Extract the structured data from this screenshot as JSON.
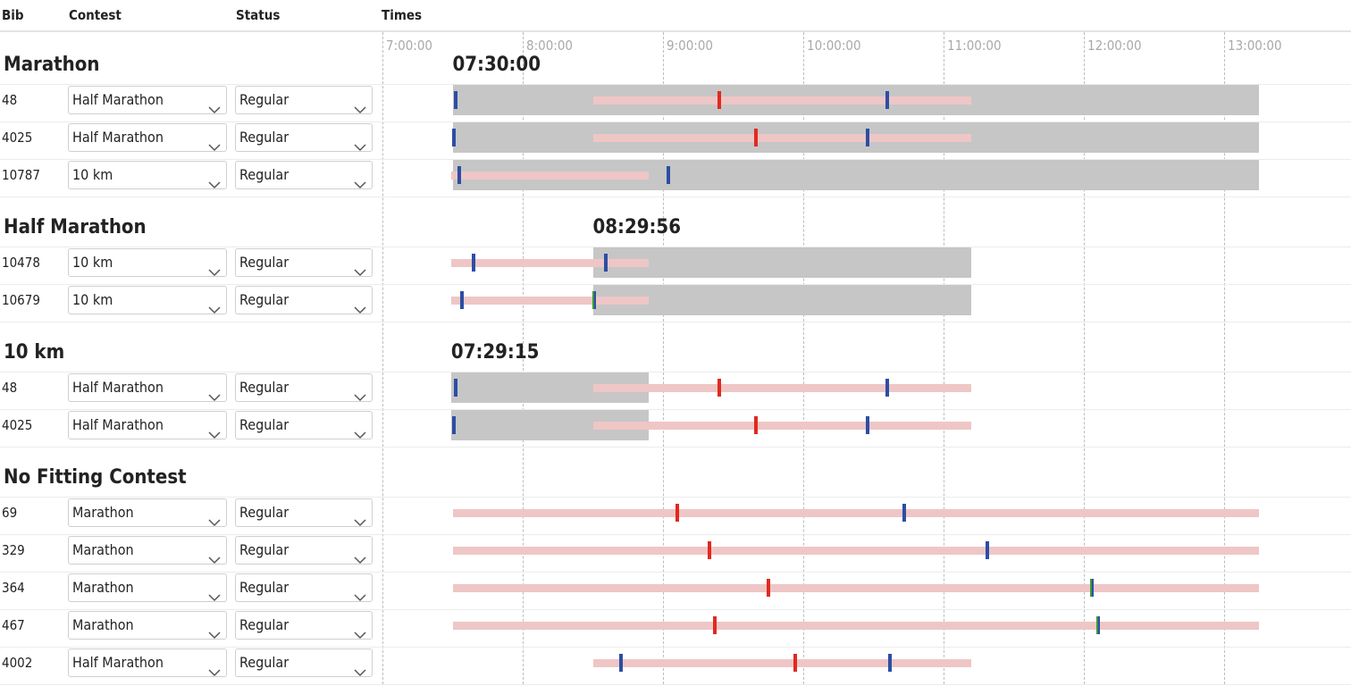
{
  "header": {
    "bib": "Bib",
    "contest": "Contest",
    "status": "Status",
    "times": "Times"
  },
  "timeline": {
    "start_hour": 6.5,
    "end_hour": 13.7,
    "ticks": [
      {
        "hour": 7,
        "label": "7:00:00"
      },
      {
        "hour": 8,
        "label": "8:00:00"
      },
      {
        "hour": 9,
        "label": "9:00:00"
      },
      {
        "hour": 10,
        "label": "10:00:00"
      },
      {
        "hour": 11,
        "label": "11:00:00"
      },
      {
        "hour": 12,
        "label": "12:00:00"
      },
      {
        "hour": 13,
        "label": "13:00:00"
      }
    ]
  },
  "groups": [
    {
      "title": "Marathon",
      "time": "07:30:00",
      "window": [
        7.5,
        13.25
      ],
      "rows": [
        {
          "bib": "48",
          "contest": "Half Marathon",
          "status": "Regular",
          "bar": [
            8.5,
            11.2
          ],
          "marks": [
            {
              "h": 7.52,
              "c": "blue"
            },
            {
              "h": 9.4,
              "c": "red"
            },
            {
              "h": 10.6,
              "c": "blue"
            }
          ]
        },
        {
          "bib": "4025",
          "contest": "Half Marathon",
          "status": "Regular",
          "bar": [
            8.5,
            11.2
          ],
          "marks": [
            {
              "h": 7.51,
              "c": "blue"
            },
            {
              "h": 9.66,
              "c": "red"
            },
            {
              "h": 10.46,
              "c": "blue"
            }
          ]
        },
        {
          "bib": "10787",
          "contest": "10 km",
          "status": "Regular",
          "bar": [
            7.49,
            8.9
          ],
          "marks": [
            {
              "h": 7.55,
              "c": "blue"
            },
            {
              "h": 9.04,
              "c": "blue"
            }
          ]
        }
      ]
    },
    {
      "title": "Half Marathon",
      "time": "08:29:56",
      "window": [
        8.5,
        11.2
      ],
      "rows": [
        {
          "bib": "10478",
          "contest": "10 km",
          "status": "Regular",
          "bar": [
            7.49,
            8.9
          ],
          "marks": [
            {
              "h": 7.65,
              "c": "blue"
            },
            {
              "h": 8.59,
              "c": "blue"
            }
          ]
        },
        {
          "bib": "10679",
          "contest": "10 km",
          "status": "Regular",
          "bar": [
            7.49,
            8.9
          ],
          "marks": [
            {
              "h": 7.57,
              "c": "blue"
            },
            {
              "h": 8.51,
              "c": "green"
            }
          ]
        }
      ]
    },
    {
      "title": "10 km",
      "time": "07:29:15",
      "window": [
        7.49,
        8.9
      ],
      "rows": [
        {
          "bib": "48",
          "contest": "Half Marathon",
          "status": "Regular",
          "bar": [
            8.5,
            11.2
          ],
          "marks": [
            {
              "h": 7.52,
              "c": "blue"
            },
            {
              "h": 9.4,
              "c": "red"
            },
            {
              "h": 10.6,
              "c": "blue"
            }
          ]
        },
        {
          "bib": "4025",
          "contest": "Half Marathon",
          "status": "Regular",
          "bar": [
            8.5,
            11.2
          ],
          "marks": [
            {
              "h": 7.51,
              "c": "blue"
            },
            {
              "h": 9.66,
              "c": "red"
            },
            {
              "h": 10.46,
              "c": "blue"
            }
          ]
        }
      ]
    },
    {
      "title": "No Fitting Contest",
      "time": "",
      "window": null,
      "rows": [
        {
          "bib": "69",
          "contest": "Marathon",
          "status": "Regular",
          "bar": [
            7.5,
            13.25
          ],
          "marks": [
            {
              "h": 9.1,
              "c": "red"
            },
            {
              "h": 10.72,
              "c": "blue"
            }
          ]
        },
        {
          "bib": "329",
          "contest": "Marathon",
          "status": "Regular",
          "bar": [
            7.5,
            13.25
          ],
          "marks": [
            {
              "h": 9.33,
              "c": "red"
            },
            {
              "h": 11.31,
              "c": "blue"
            }
          ]
        },
        {
          "bib": "364",
          "contest": "Marathon",
          "status": "Regular",
          "bar": [
            7.5,
            13.25
          ],
          "marks": [
            {
              "h": 9.75,
              "c": "red"
            },
            {
              "h": 12.06,
              "c": "green"
            }
          ]
        },
        {
          "bib": "467",
          "contest": "Marathon",
          "status": "Regular",
          "bar": [
            7.5,
            13.25
          ],
          "marks": [
            {
              "h": 9.37,
              "c": "red"
            },
            {
              "h": 12.1,
              "c": "green"
            }
          ]
        },
        {
          "bib": "4002",
          "contest": "Half Marathon",
          "status": "Regular",
          "bar": [
            8.5,
            11.2
          ],
          "marks": [
            {
              "h": 8.7,
              "c": "blue"
            },
            {
              "h": 9.94,
              "c": "red"
            },
            {
              "h": 10.62,
              "c": "blue"
            }
          ]
        }
      ]
    }
  ],
  "colors": {
    "red": "#e02a1f",
    "blue": "#2d4ea3",
    "green": "#3a9a3a",
    "pink": "#efc6c6",
    "gray": "#c6c6c6"
  },
  "icons": {
    "dropdown": "chevron-down-icon"
  }
}
